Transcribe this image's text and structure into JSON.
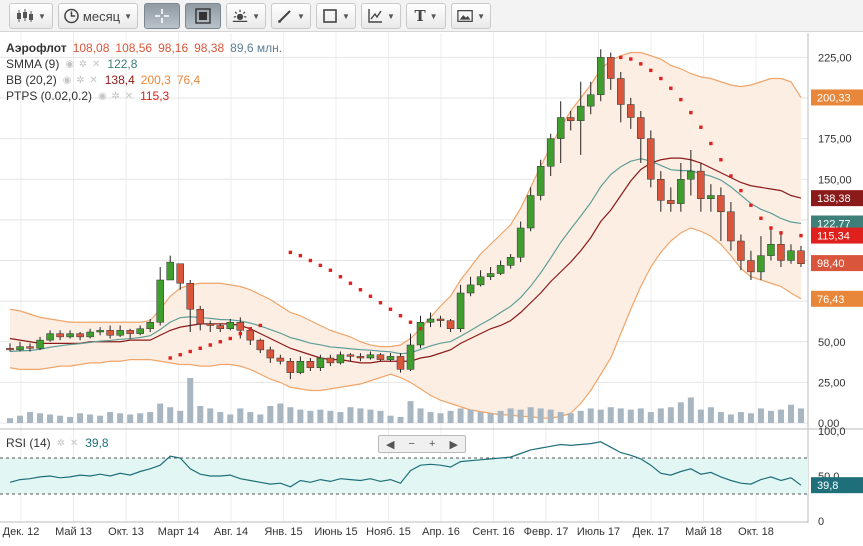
{
  "toolbar": {
    "chart_type_icon": "candlestick-icon",
    "period_label": "месяц",
    "period_icon": "clock-icon",
    "crosshair_icon": "crosshair-icon",
    "scale_icon": "frame-icon",
    "sun_icon": "indicators-icon",
    "pen_icon": "pen-icon",
    "shape_icon": "rectangle-icon",
    "fib_icon": "trend-tools-icon",
    "text_icon": "T",
    "image_icon": "image-icon"
  },
  "legend": {
    "ticker": "Аэрофлот",
    "open": "108,08",
    "high": "108,56",
    "low": "98,16",
    "close": "98,38",
    "volume": "89,6 млн.",
    "smma_label": "SMMA (9)",
    "smma_value": "122,8",
    "bb_label": "BB (20,2)",
    "bb_value1": "138,4",
    "bb_value2": "200,3",
    "bb_value3": "76,4",
    "ptps_label": "PTPS (0.02,0.2)",
    "ptps_value": "115,3",
    "rsi_label": "RSI (14)",
    "rsi_value": "39,8"
  },
  "colors": {
    "up": "#3f9e2e",
    "down": "#d9553b",
    "bb_band": "#f0a56a",
    "bb_fill": "#fdeee3",
    "bb_mid": "#8b1a1a",
    "smma": "#5e9e98",
    "psar": "#e0201c",
    "psar_up": "#2e8b1e",
    "volume": "#a8b6c2",
    "rsi": "#1f6f7a",
    "rsi_fill": "#e2f7f4"
  },
  "chart_data": {
    "type": "candlestick",
    "title": "Аэрофлот",
    "x_ticks": [
      "Дек. 12",
      "Май 13",
      "Окт. 13",
      "Март 14",
      "Авг. 14",
      "Янв. 15",
      "Июнь 15",
      "Нояб. 15",
      "Апр. 16",
      "Сент. 16",
      "Февр. 17",
      "Июль 17",
      "Дек. 17",
      "Май 18",
      "Окт. 18"
    ],
    "price_ticks": [
      "0,00",
      "25,00",
      "50,00",
      "75,00",
      "100,00",
      "125,00",
      "150,00",
      "175,00",
      "200,00",
      "225,00"
    ],
    "price_ylim": [
      0,
      240
    ],
    "right_tags": [
      {
        "label": "200,33",
        "value": 200.33,
        "color": "#e8873a"
      },
      {
        "label": "138,38",
        "value": 138.38,
        "color": "#8b1a1a"
      },
      {
        "label": "122,77",
        "value": 122.77,
        "color": "#3d7f79"
      },
      {
        "label": "115,34",
        "value": 115.34,
        "color": "#e0201c"
      },
      {
        "label": "98,40",
        "value": 98.4,
        "color": "#d9553b"
      },
      {
        "label": "76,43",
        "value": 76.43,
        "color": "#e8873a"
      }
    ],
    "rsi_ticks": [
      "0",
      "50,0",
      "100,0"
    ],
    "rsi_ylim": [
      0,
      100
    ],
    "rsi_levels": [
      30,
      70
    ],
    "rsi_tag": "39,8",
    "candles": [
      [
        46,
        45,
        49,
        44
      ],
      [
        45,
        47,
        50,
        44
      ],
      [
        47,
        46,
        49,
        44
      ],
      [
        46,
        51,
        53,
        45
      ],
      [
        51,
        55,
        57,
        50
      ],
      [
        55,
        53,
        57,
        51
      ],
      [
        53,
        55,
        57,
        52
      ],
      [
        55,
        53,
        56,
        51
      ],
      [
        53,
        56,
        58,
        52
      ],
      [
        56,
        57,
        59,
        54
      ],
      [
        57,
        54,
        60,
        52
      ],
      [
        54,
        57,
        60,
        53
      ],
      [
        57,
        55,
        58,
        52
      ],
      [
        55,
        58,
        60,
        54
      ],
      [
        58,
        62,
        64,
        56
      ],
      [
        62,
        88,
        96,
        60
      ],
      [
        88,
        99,
        103,
        94
      ],
      [
        98,
        86,
        98,
        82
      ],
      [
        86,
        70,
        88,
        56
      ],
      [
        70,
        61,
        72,
        57
      ],
      [
        61,
        60,
        63,
        56
      ],
      [
        60,
        58,
        61,
        56
      ],
      [
        58,
        62,
        64,
        57
      ],
      [
        62,
        57,
        65,
        52
      ],
      [
        57,
        51,
        58,
        48
      ],
      [
        51,
        45,
        52,
        43
      ],
      [
        45,
        40,
        47,
        37
      ],
      [
        40,
        38,
        42,
        36
      ],
      [
        38,
        31,
        40,
        27
      ],
      [
        31,
        38,
        41,
        30
      ],
      [
        38,
        34,
        40,
        32
      ],
      [
        34,
        40,
        42,
        32
      ],
      [
        40,
        37,
        42,
        35
      ],
      [
        37,
        42,
        44,
        36
      ],
      [
        42,
        41,
        43,
        38
      ],
      [
        41,
        40,
        43,
        38
      ],
      [
        40,
        42,
        44,
        39
      ],
      [
        42,
        39,
        43,
        38
      ],
      [
        39,
        41,
        43,
        38
      ],
      [
        41,
        33,
        43,
        31
      ],
      [
        33,
        48,
        55,
        32
      ],
      [
        48,
        62,
        66,
        46
      ],
      [
        62,
        64,
        68,
        59
      ],
      [
        64,
        63,
        66,
        59
      ],
      [
        63,
        58,
        64,
        56
      ],
      [
        58,
        80,
        85,
        56
      ],
      [
        80,
        85,
        90,
        78
      ],
      [
        85,
        90,
        94,
        84
      ],
      [
        90,
        92,
        96,
        88
      ],
      [
        92,
        97,
        100,
        91
      ],
      [
        97,
        102,
        104,
        95
      ],
      [
        102,
        120,
        124,
        99
      ],
      [
        120,
        140,
        145,
        118
      ],
      [
        140,
        158,
        162,
        137
      ],
      [
        158,
        175,
        178,
        152
      ],
      [
        175,
        188,
        198,
        160
      ],
      [
        188,
        186,
        192,
        180
      ],
      [
        186,
        195,
        210,
        165
      ],
      [
        195,
        202,
        210,
        190
      ],
      [
        202,
        225,
        230,
        198
      ],
      [
        225,
        212,
        228,
        205
      ],
      [
        212,
        196,
        216,
        185
      ],
      [
        196,
        188,
        200,
        181
      ],
      [
        188,
        175,
        192,
        160
      ],
      [
        175,
        150,
        180,
        145
      ],
      [
        150,
        137,
        155,
        130
      ],
      [
        137,
        135,
        145,
        130
      ],
      [
        135,
        150,
        160,
        130
      ],
      [
        150,
        155,
        168,
        140
      ],
      [
        155,
        138,
        160,
        130
      ],
      [
        138,
        140,
        147,
        130
      ],
      [
        140,
        130,
        145,
        112
      ],
      [
        130,
        112,
        136,
        106
      ],
      [
        112,
        100,
        116,
        94
      ],
      [
        100,
        93,
        106,
        88
      ],
      [
        93,
        103,
        115,
        88
      ],
      [
        103,
        110,
        120,
        100
      ],
      [
        110,
        100,
        118,
        96
      ],
      [
        100,
        106,
        110,
        98
      ],
      [
        106,
        98,
        109,
        96
      ]
    ],
    "volume": [
      4,
      6,
      9,
      8,
      7,
      6,
      5,
      8,
      7,
      6,
      9,
      8,
      7,
      8,
      9,
      16,
      13,
      10,
      37,
      14,
      12,
      9,
      7,
      12,
      9,
      7,
      14,
      16,
      13,
      11,
      10,
      11,
      10,
      9,
      13,
      12,
      11,
      10,
      6,
      5,
      18,
      12,
      9,
      8,
      10,
      12,
      11,
      9,
      8,
      10,
      12,
      11,
      13,
      12,
      11,
      9,
      8,
      10,
      12,
      11,
      13,
      12,
      11,
      12,
      9,
      12,
      13,
      17,
      21,
      11,
      13,
      9,
      7,
      9,
      8,
      12,
      10,
      11,
      15,
      12
    ],
    "smma": [
      44,
      44.4,
      44.6,
      45.4,
      46.6,
      47.5,
      48.3,
      48.8,
      49.6,
      50.4,
      50.8,
      51.5,
      51.9,
      52.6,
      53.7,
      57.5,
      62.1,
      64.8,
      65.4,
      64.9,
      64.4,
      63.7,
      63.5,
      62.8,
      61.5,
      59.7,
      57.5,
      55.3,
      52.6,
      51,
      49.1,
      48.1,
      46.8,
      46.3,
      45.7,
      45.1,
      44.8,
      44.2,
      43.8,
      42.6,
      43.2,
      45.3,
      47.4,
      49.1,
      50.1,
      53.4,
      56.9,
      60.6,
      64,
      68,
      71.8,
      77.2,
      84.2,
      92.4,
      101.5,
      111.1,
      119.4,
      127.3,
      135.6,
      145.5,
      152.9,
      157.7,
      161.1,
      162.6,
      161.2,
      158.5,
      155.9,
      155.3,
      155.3,
      153.4,
      151.9,
      149.5,
      145.3,
      140.2,
      135,
      131.5,
      129.1,
      125.9,
      123.7,
      122.8
    ],
    "bb_upper": [
      70,
      69,
      67,
      65,
      64,
      63,
      62,
      62,
      62,
      62,
      62,
      62,
      62,
      62,
      63,
      70,
      78,
      83,
      85,
      86,
      86,
      86,
      85,
      84,
      82,
      79,
      76,
      72,
      68,
      66,
      63,
      60,
      57,
      55,
      53,
      50,
      48,
      47,
      47,
      48,
      52,
      58,
      65,
      72,
      78,
      88,
      96,
      104,
      110,
      116,
      122,
      132,
      145,
      158,
      170,
      182,
      192,
      200,
      208,
      218,
      223,
      226,
      228,
      228,
      226,
      224,
      220,
      218,
      215,
      213,
      212,
      210,
      208,
      207,
      208,
      210,
      212,
      212,
      210,
      200.3
    ],
    "bb_lower": [
      34,
      33,
      33,
      33,
      34,
      35,
      35,
      36,
      37,
      37,
      38,
      38,
      39,
      39,
      39,
      38,
      37,
      36,
      36,
      35,
      35,
      36,
      36,
      35,
      33,
      30,
      27,
      25,
      22,
      21,
      20,
      20,
      21,
      22,
      23,
      24,
      26,
      28,
      30,
      28,
      25,
      21,
      17,
      14,
      12,
      10,
      8,
      7,
      6,
      5,
      5,
      4,
      4,
      3,
      3,
      4,
      6,
      12,
      20,
      30,
      40,
      55,
      70,
      84,
      96,
      105,
      112,
      117,
      120,
      118,
      115,
      110,
      103,
      95,
      90,
      88,
      86,
      84,
      80,
      76.4
    ],
    "bb_middle": [
      52,
      51,
      50,
      49,
      49,
      49,
      49,
      49,
      50,
      50,
      50,
      50,
      51,
      51,
      51,
      54,
      57,
      59,
      60,
      61,
      61,
      61,
      61,
      60,
      58,
      55,
      52,
      49,
      46,
      44,
      42,
      40,
      39,
      39,
      38,
      37,
      37,
      38,
      38,
      38,
      38,
      40,
      41,
      43,
      45,
      49,
      52,
      55,
      58,
      60,
      63,
      68,
      74,
      80,
      87,
      93,
      99,
      106,
      114,
      124,
      131,
      140,
      149,
      156,
      160,
      162,
      163,
      163,
      162,
      160,
      157,
      154,
      151,
      148,
      146,
      145,
      144,
      143,
      140,
      138.4
    ],
    "psar": [
      null,
      null,
      null,
      null,
      null,
      null,
      null,
      null,
      null,
      null,
      null,
      null,
      null,
      null,
      null,
      null,
      40,
      42,
      44,
      46,
      48,
      50,
      52,
      55,
      58,
      60,
      null,
      null,
      105,
      103,
      100,
      97,
      94,
      90,
      86,
      82,
      78,
      74,
      70,
      66,
      62,
      58,
      null,
      null,
      null,
      null,
      null,
      null,
      null,
      null,
      null,
      null,
      null,
      null,
      null,
      null,
      null,
      null,
      null,
      null,
      null,
      225,
      224,
      221,
      217,
      212,
      206,
      199,
      191,
      182,
      172,
      162,
      152,
      143,
      134,
      126,
      120,
      117,
      null,
      115.3
    ],
    "psar_side": [
      "u",
      "u",
      "u",
      "u",
      "u",
      "u",
      "u",
      "u",
      "u",
      "u",
      "u",
      "u",
      "u",
      "u",
      "u",
      "u",
      "d",
      "d",
      "d",
      "d",
      "d",
      "d",
      "d",
      "d",
      "d",
      "d",
      "d",
      "d",
      "d",
      "d",
      "d",
      "d",
      "d",
      "d",
      "d",
      "d",
      "d",
      "d",
      "d",
      "d",
      "d",
      "d",
      "u",
      "u",
      "u",
      "u",
      "u",
      "u",
      "u",
      "u",
      "u",
      "u",
      "u",
      "u",
      "u",
      "u",
      "u",
      "u",
      "u",
      "u",
      "u",
      "d",
      "d",
      "d",
      "d",
      "d",
      "d",
      "d",
      "d",
      "d",
      "d",
      "d",
      "d",
      "d",
      "d",
      "d",
      "d",
      "d",
      "d",
      "d"
    ],
    "rsi": [
      43,
      46,
      47,
      49,
      50,
      48,
      49,
      51,
      50,
      52,
      50,
      53,
      51,
      55,
      58,
      62,
      72,
      70,
      58,
      52,
      50,
      50,
      51,
      47,
      45,
      43,
      41,
      42,
      38,
      45,
      43,
      46,
      44,
      47,
      46,
      45,
      47,
      44,
      46,
      42,
      56,
      62,
      63,
      62,
      60,
      66,
      67,
      68,
      69,
      70,
      71,
      75,
      79,
      81,
      83,
      85,
      84,
      85,
      86,
      88,
      82,
      76,
      73,
      69,
      62,
      53,
      51,
      55,
      58,
      52,
      54,
      49,
      45,
      42,
      41,
      46,
      49,
      45,
      48,
      39.8
    ]
  }
}
